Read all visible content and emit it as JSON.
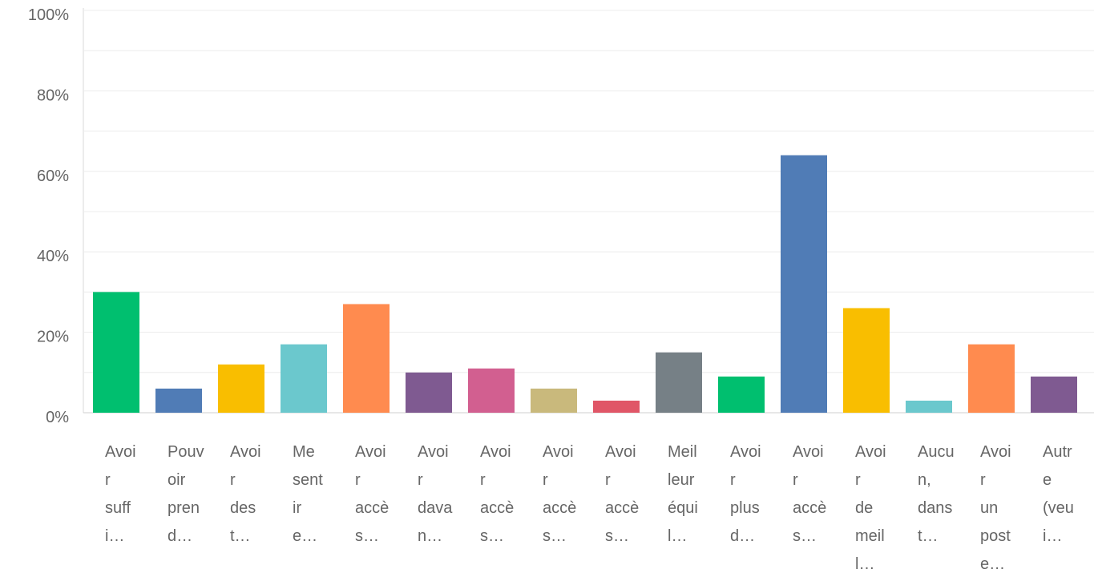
{
  "chart_data": {
    "type": "bar",
    "categories": [
      "Avoir suffi…",
      "Pouvoir prend…",
      "Avoir des t…",
      "Me sentir e…",
      "Avoir accès…",
      "Avoir davan…",
      "Avoir accès…",
      "Avoir accès…",
      "Avoir accès…",
      "Meilleur équil…",
      "Avoir plus d…",
      "Avoir accès…",
      "Avoir de meill…",
      "Aucun, dans t…",
      "Avoir un poste…",
      "Autre (veui…"
    ],
    "values": [
      30,
      6,
      12,
      17,
      27,
      10,
      11,
      6,
      3,
      15,
      9,
      64,
      26,
      3,
      17,
      9
    ],
    "colors": [
      "#00bf6f",
      "#507cb6",
      "#f9be00",
      "#6bc8cd",
      "#ff8b4f",
      "#7f5a91",
      "#d25f90",
      "#c9b97c",
      "#e05667",
      "#768086",
      "#00bf6f",
      "#507cb6",
      "#f9be00",
      "#6bc8cd",
      "#ff8b4f",
      "#7f5a91"
    ],
    "ylim": [
      0,
      100
    ],
    "yticks": [
      {
        "value": 0,
        "label": "0%"
      },
      {
        "value": 20,
        "label": "20%"
      },
      {
        "value": 40,
        "label": "40%"
      },
      {
        "value": 60,
        "label": "60%"
      },
      {
        "value": 80,
        "label": "80%"
      },
      {
        "value": 100,
        "label": "100%"
      }
    ],
    "grid": true,
    "minor_grid": true
  }
}
